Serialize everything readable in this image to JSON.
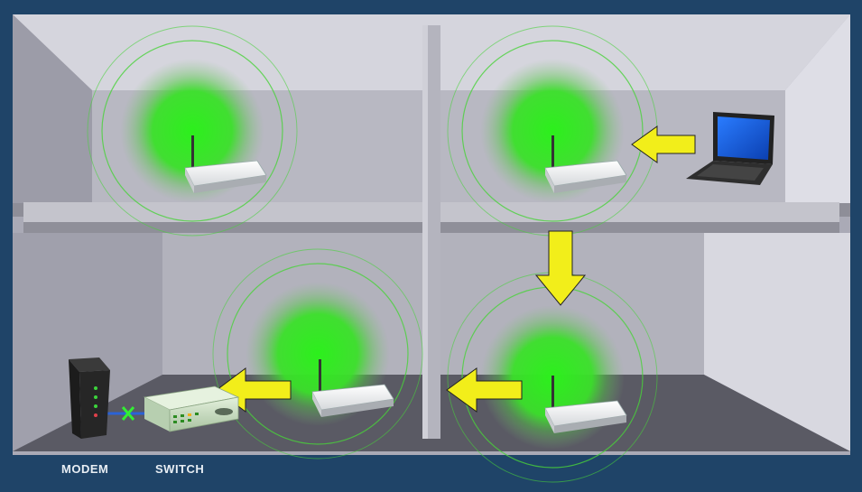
{
  "captions": {
    "modem": "MODEM",
    "switch": "SWITCH"
  },
  "colors": {
    "background": "#1f4468",
    "signal": "#33dd22",
    "arrow": "#f2ee1a",
    "cable": "#2b63d6",
    "blocked": "#33ee33"
  },
  "devices": {
    "routers": [
      "wireless-router",
      "wireless-router",
      "wireless-router",
      "wireless-router"
    ],
    "modem": "cable-modem",
    "switch": "network-switch",
    "laptop": "laptop"
  }
}
